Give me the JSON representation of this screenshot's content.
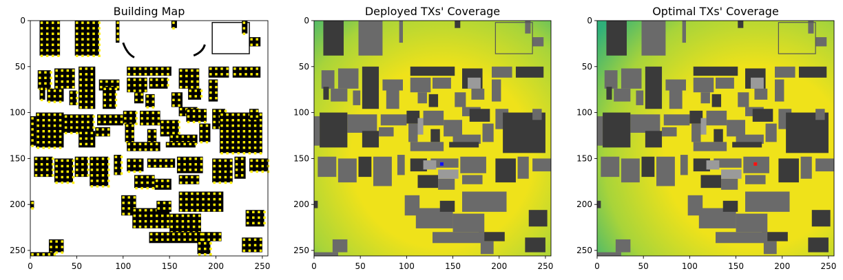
{
  "figure": {
    "panels": [
      {
        "id": "building-map",
        "title": "Building Map",
        "kind": "building_map"
      },
      {
        "id": "deployed-coverage",
        "title": "Deployed TXs' Coverage",
        "kind": "coverage",
        "tx": {
          "x": 138,
          "y": 156,
          "color": "#1010ff"
        }
      },
      {
        "id": "optimal-coverage",
        "title": "Optimal TXs' Coverage",
        "kind": "coverage",
        "tx": {
          "x": 171,
          "y": 156,
          "color": "#ff1010"
        }
      }
    ]
  },
  "colors": {
    "building_fill": "#000000",
    "edge_marker": "#ffee00",
    "coverage_low": "#2fb07a",
    "coverage_mid": "#a8d43a",
    "coverage_high": "#efe21a",
    "building_dark": "#3a3a3a",
    "building_mid": "#6a6a6a",
    "building_light": "#9a9a9a"
  },
  "chart_data": [
    {
      "type": "heatmap",
      "title": "Building Map",
      "xlabel": "",
      "ylabel": "",
      "xlim": [
        0,
        256
      ],
      "ylim": [
        256,
        0
      ],
      "xticks": [
        0,
        50,
        100,
        150,
        200,
        250
      ],
      "yticks": [
        0,
        50,
        100,
        150,
        200,
        250
      ],
      "legend": "none"
    },
    {
      "type": "heatmap",
      "title": "Deployed TXs' Coverage",
      "xlabel": "",
      "ylabel": "",
      "xlim": [
        0,
        256
      ],
      "ylim": [
        256,
        0
      ],
      "xticks": [
        0,
        50,
        100,
        150,
        200,
        250
      ],
      "yticks": [
        0,
        50,
        100,
        150,
        200,
        250
      ],
      "legend": "none",
      "transmitters": [
        {
          "x": 138,
          "y": 156
        }
      ]
    },
    {
      "type": "heatmap",
      "title": "Optimal TXs' Coverage",
      "xlabel": "",
      "ylabel": "",
      "xlim": [
        0,
        256
      ],
      "ylim": [
        256,
        0
      ],
      "xticks": [
        0,
        50,
        100,
        150,
        200,
        250
      ],
      "yticks": [
        0,
        50,
        100,
        150,
        200,
        250
      ],
      "legend": "none",
      "transmitters": [
        {
          "x": 171,
          "y": 156
        }
      ]
    }
  ]
}
